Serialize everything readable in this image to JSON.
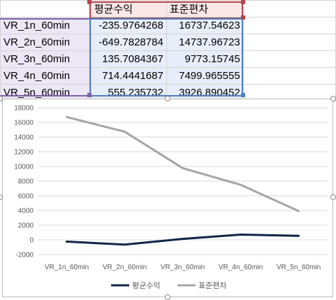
{
  "table": {
    "header": [
      "",
      "평균수익",
      "표준편차"
    ],
    "rows": [
      {
        "label": "VR_1n_60min",
        "avg": "-235.9764268",
        "std": "16737.54623"
      },
      {
        "label": "VR_2n_60min",
        "avg": "-649.7828784",
        "std": "14737.96723"
      },
      {
        "label": "VR_3n_60min",
        "avg": "135.7084367",
        "std": "9773.15745"
      },
      {
        "label": "VR_4n_60min",
        "avg": "714.4441687",
        "std": "7499.965555"
      },
      {
        "label": "VR_5n_60min",
        "avg": "555.235732",
        "std": "3926.890452"
      }
    ]
  },
  "colors": {
    "avg_series": "#0f2548",
    "std_series": "#a5a5a5",
    "gridline": "#d9d9d9",
    "header_range": "#b2474f",
    "label_range": "#7b5ea7",
    "value_range": "#4f7fc2"
  },
  "chart_data": {
    "type": "line",
    "categories": [
      "VR_1n_60min",
      "VR_2n_60min",
      "VR_3n_60min",
      "VR_4n_60min",
      "VR_5n_60min"
    ],
    "series": [
      {
        "name": "평균수익",
        "values": [
          -235.9764268,
          -649.7828784,
          135.7084367,
          714.4441687,
          555.235732
        ]
      },
      {
        "name": "표준편차",
        "values": [
          16737.54623,
          14737.96723,
          9773.15745,
          7499.965555,
          3926.890452
        ]
      }
    ],
    "yticks": [
      "18000",
      "16000",
      "14000",
      "12000",
      "10000",
      "8000",
      "6000",
      "4000",
      "2000",
      "0",
      "-2000"
    ],
    "ylim": [
      -2000,
      18000
    ],
    "grid": true,
    "legend_position": "bottom"
  }
}
